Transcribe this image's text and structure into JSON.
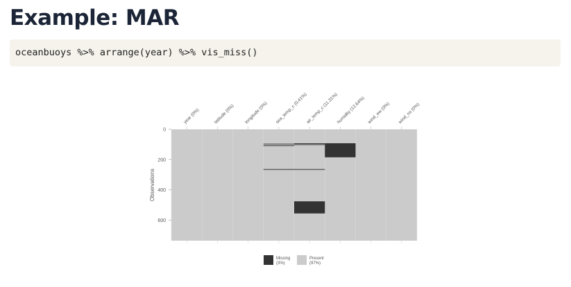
{
  "page": {
    "title": "Example: MAR",
    "code": "oceanbuoys %>% arrange(year) %>% vis_miss()"
  },
  "colors": {
    "missing": "#333333",
    "present": "#cbcbcb",
    "code_background": "#f6f3ec",
    "title": "#1b2537"
  },
  "chart_data": {
    "type": "heatmap",
    "columns": [
      "year (0%)",
      "latitude (0%)",
      "longitude (0%)",
      "sea_temp_c (0.41%)",
      "air_temp_c (11.31%)",
      "humidity (12.64%)",
      "wind_ew (0%)",
      "wind_ns (0%)"
    ],
    "ylabel": "Observations",
    "ylim": [
      0,
      736
    ],
    "y_ticks": [
      0,
      200,
      400,
      600
    ],
    "y_reversed": true,
    "missing_blocks": [
      {
        "column": 3,
        "rows": [
          95,
          97
        ]
      },
      {
        "column": 3,
        "rows": [
          106,
          108
        ]
      },
      {
        "column": 3,
        "rows": [
          263,
          265
        ]
      },
      {
        "column": 4,
        "rows": [
          92,
          94
        ]
      },
      {
        "column": 4,
        "rows": [
          99,
          101
        ]
      },
      {
        "column": 4,
        "rows": [
          263,
          265
        ]
      },
      {
        "column": 4,
        "rows": [
          476,
          556
        ]
      },
      {
        "column": 5,
        "rows": [
          92,
          185
        ]
      }
    ],
    "legend": [
      {
        "label_line1": "Missing",
        "label_line2": "(3%)",
        "color": "#333333"
      },
      {
        "label_line1": "Present",
        "label_line2": "(97%)",
        "color": "#cbcbcb"
      }
    ],
    "legend_position": "bottom"
  }
}
